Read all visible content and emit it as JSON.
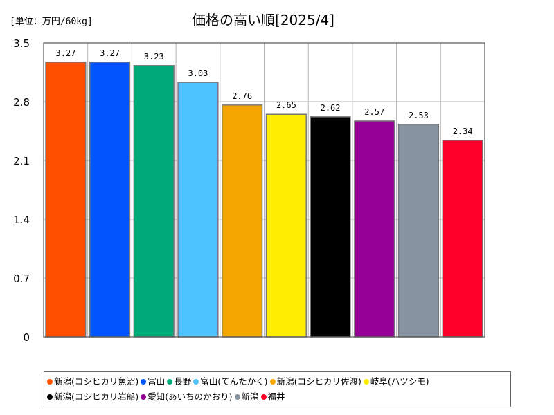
{
  "unit_label": "[単位：万円/60kg]",
  "chart_data": {
    "type": "bar",
    "title": "価格の高い順[2025/4]",
    "categories": [
      "新潟(コシヒカリ魚沼)",
      "富山",
      "長野",
      "富山(てんたかく)",
      "新潟(コシヒカリ佐渡)",
      "岐阜(ハツシモ)",
      "新潟(コシヒカリ岩船)",
      "愛知(あいちのかおり)",
      "新潟",
      "福井"
    ],
    "values": [
      3.27,
      3.27,
      3.23,
      3.03,
      2.76,
      2.65,
      2.62,
      2.57,
      2.53,
      2.34
    ],
    "value_labels": [
      "3.27",
      "3.27",
      "3.23",
      "3.03",
      "2.76",
      "2.65",
      "2.62",
      "2.57",
      "2.53",
      "2.34"
    ],
    "colors": [
      "#ff5000",
      "#0055ff",
      "#00aa78",
      "#4cc3ff",
      "#f5a500",
      "#ffee00",
      "#000000",
      "#960096",
      "#8594a0",
      "#ff0028"
    ],
    "yticks": [
      "0",
      "0.7",
      "1.4",
      "2.1",
      "2.8",
      "3.5"
    ],
    "ylim": [
      0,
      3.5
    ],
    "grid": true,
    "legend_position": "bottom"
  }
}
